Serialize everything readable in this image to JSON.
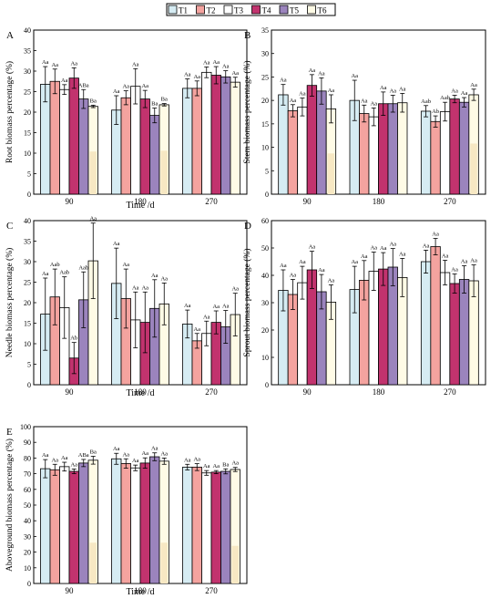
{
  "legend": [
    "T1",
    "T2",
    "T3",
    "T4",
    "T5",
    "T6"
  ],
  "colors": {
    "T1": "#d6ecf3",
    "T2": "#f4a39f",
    "T3": "#ffffff",
    "T4": "#c2336e",
    "T5": "#9b84bd",
    "T6": "#fffbe6",
    "inner_bar": "#f7e8c3",
    "axis": "#000000"
  },
  "chart_data": [
    {
      "panel": "A",
      "type": "bar",
      "xlabel": "Time /d",
      "ylabel": "Root biomass percentage (%)",
      "categories": [
        "90",
        "180",
        "270"
      ],
      "ylim": [
        0,
        40
      ],
      "yticks": [
        0,
        5,
        10,
        15,
        20,
        25,
        30,
        35,
        40
      ],
      "series": [
        {
          "name": "T1",
          "values": [
            26.8,
            20.5,
            25.8
          ],
          "errors": [
            4.3,
            3.5,
            2.3
          ],
          "labels": [
            "Aa",
            "Aa",
            "Aa"
          ]
        },
        {
          "name": "T2",
          "values": [
            27.5,
            23.5,
            25.8
          ],
          "errors": [
            3.0,
            1.7,
            1.8
          ],
          "labels": [
            "Aa",
            "Aa",
            "Aa"
          ]
        },
        {
          "name": "T3",
          "values": [
            25.5,
            26.3,
            29.7
          ],
          "errors": [
            1.2,
            4.3,
            1.3
          ],
          "labels": [
            "Aa",
            "Aa",
            "Aa"
          ]
        },
        {
          "name": "T4",
          "values": [
            28.3,
            23.2,
            29.0
          ],
          "errors": [
            2.5,
            2.1,
            2.1
          ],
          "labels": [
            "Aa",
            "Aa",
            "Aa"
          ]
        },
        {
          "name": "T5",
          "values": [
            23.2,
            19.2,
            28.6
          ],
          "errors": [
            2.3,
            1.8,
            1.5
          ],
          "labels": [
            "ABa",
            "Ba",
            "Aa"
          ]
        },
        {
          "name": "T6",
          "values": [
            21.4,
            21.8,
            27.3
          ],
          "errors": [
            0.3,
            0.3,
            1.2
          ],
          "labels": [
            "Ba",
            "Ba",
            "Aa"
          ]
        }
      ],
      "inner_values": [
        10.4,
        10.6,
        null
      ]
    },
    {
      "panel": "B",
      "type": "bar",
      "xlabel": "",
      "ylabel": "Stem biomass percentage (%)",
      "categories": [
        "90",
        "180",
        "270"
      ],
      "ylim": [
        0,
        35
      ],
      "yticks": [
        0,
        5,
        10,
        15,
        20,
        25,
        30,
        35
      ],
      "series": [
        {
          "name": "T1",
          "values": [
            21.2,
            20.0,
            17.7
          ],
          "errors": [
            2.2,
            4.3,
            1.2
          ],
          "labels": [
            "Aa",
            "Aa",
            "Aab"
          ]
        },
        {
          "name": "T2",
          "values": [
            17.8,
            17.2,
            15.5
          ],
          "errors": [
            1.3,
            1.8,
            1.2
          ],
          "labels": [
            "Aa",
            "Aa",
            "Ab"
          ]
        },
        {
          "name": "T3",
          "values": [
            18.6,
            16.5,
            17.6
          ],
          "errors": [
            1.9,
            1.9,
            2.0
          ],
          "labels": [
            "Aa",
            "Aa",
            "Aab"
          ]
        },
        {
          "name": "T4",
          "values": [
            23.2,
            19.3,
            20.3
          ],
          "errors": [
            2.3,
            2.5,
            0.8
          ],
          "labels": [
            "Aa",
            "Aa",
            "Aa"
          ]
        },
        {
          "name": "T5",
          "values": [
            22.0,
            19.3,
            19.6
          ],
          "errors": [
            2.8,
            1.8,
            1.0
          ],
          "labels": [
            "Aa",
            "Aa",
            "Aa"
          ]
        },
        {
          "name": "T6",
          "values": [
            18.2,
            19.5,
            21.2
          ],
          "errors": [
            3.0,
            2.0,
            1.2
          ],
          "labels": [
            "Aa",
            "Aa",
            "Aa"
          ]
        }
      ],
      "inner_values": [
        8.7,
        null,
        10.8
      ]
    },
    {
      "panel": "C",
      "type": "bar",
      "xlabel": "Time /d",
      "ylabel": "Needle biomass percentage (%)",
      "categories": [
        "90",
        "180",
        "270"
      ],
      "ylim": [
        0,
        40
      ],
      "yticks": [
        0,
        5,
        10,
        15,
        20,
        25,
        30,
        35,
        40
      ],
      "series": [
        {
          "name": "T1",
          "values": [
            17.2,
            24.7,
            14.8
          ],
          "errors": [
            8.8,
            8.6,
            3.4
          ],
          "labels": [
            "Aa",
            "Aa",
            "Aa"
          ]
        },
        {
          "name": "T2",
          "values": [
            21.4,
            21.0,
            10.7
          ],
          "errors": [
            6.8,
            7.2,
            1.8
          ],
          "labels": [
            "Aab",
            "Aa",
            "Aa"
          ]
        },
        {
          "name": "T3",
          "values": [
            18.8,
            15.8,
            12.5
          ],
          "errors": [
            7.5,
            6.8,
            3.0
          ],
          "labels": [
            "Aab",
            "Aa",
            "Aa"
          ]
        },
        {
          "name": "T4",
          "values": [
            6.5,
            15.2,
            15.2
          ],
          "errors": [
            3.8,
            7.4,
            2.8
          ],
          "labels": [
            "Ab",
            "Aa",
            "Aa"
          ]
        },
        {
          "name": "T5",
          "values": [
            20.7,
            18.6,
            14.1
          ],
          "errors": [
            6.8,
            7.0,
            4.0
          ],
          "labels": [
            "Aab",
            "Aa",
            "Aa"
          ]
        },
        {
          "name": "T6",
          "values": [
            30.2,
            19.7,
            17.1
          ],
          "errors": [
            9.2,
            5.1,
            5.2
          ],
          "labels": [
            "Aa",
            "Aa",
            "Aa"
          ]
        }
      ],
      "inner_values": [
        null,
        null,
        null
      ]
    },
    {
      "panel": "D",
      "type": "bar",
      "xlabel": "",
      "ylabel": "Sprout biomass percentage (%)",
      "categories": [
        "90",
        "180",
        "270"
      ],
      "ylim": [
        0,
        60
      ],
      "yticks": [
        0,
        10,
        20,
        30,
        40,
        50,
        60
      ],
      "series": [
        {
          "name": "T1",
          "values": [
            34.5,
            34.8,
            45.0
          ],
          "errors": [
            7.5,
            8.5,
            4.2
          ],
          "labels": [
            "Aa",
            "Aa",
            "Aa"
          ]
        },
        {
          "name": "T2",
          "values": [
            33.0,
            38.2,
            50.5
          ],
          "errors": [
            5.5,
            7.2,
            3.0
          ],
          "labels": [
            "Aa",
            "Aa",
            "Aa"
          ]
        },
        {
          "name": "T3",
          "values": [
            37.3,
            41.5,
            41.0
          ],
          "errors": [
            6.0,
            7.0,
            4.5
          ],
          "labels": [
            "Aa",
            "Aa",
            "Aa"
          ]
        },
        {
          "name": "T4",
          "values": [
            42.0,
            42.3,
            37.0
          ],
          "errors": [
            6.8,
            6.0,
            3.5
          ],
          "labels": [
            "Aa",
            "Aa",
            "Aa"
          ]
        },
        {
          "name": "T5",
          "values": [
            34.0,
            43.0,
            38.5
          ],
          "errors": [
            6.3,
            6.8,
            5.0
          ],
          "labels": [
            "Aa",
            "Aa",
            "Aa"
          ]
        },
        {
          "name": "T6",
          "values": [
            30.2,
            39.2,
            38.0
          ],
          "errors": [
            6.3,
            7.0,
            5.8
          ],
          "labels": [
            "Aa",
            "Aa",
            "Aa"
          ]
        }
      ],
      "inner_values": [
        null,
        null,
        null
      ]
    },
    {
      "panel": "E",
      "type": "bar",
      "xlabel": "Time /d",
      "ylabel": "Aboveground biomass percentage (%)",
      "categories": [
        "90",
        "180",
        "270"
      ],
      "ylim": [
        0,
        100
      ],
      "yticks": [
        0,
        10,
        20,
        30,
        40,
        50,
        60,
        70,
        80,
        90,
        100
      ],
      "series": [
        {
          "name": "T1",
          "values": [
            73.2,
            79.5,
            74.2
          ],
          "errors": [
            5.8,
            3.5,
            1.8
          ],
          "labels": [
            "Aa",
            "Aa",
            "Aa"
          ]
        },
        {
          "name": "T2",
          "values": [
            72.5,
            76.5,
            74.2
          ],
          "errors": [
            3.5,
            3.0,
            2.2
          ],
          "labels": [
            "Aa",
            "Aa",
            "Aa"
          ]
        },
        {
          "name": "T3",
          "values": [
            74.5,
            73.7,
            70.5
          ],
          "errors": [
            2.8,
            1.8,
            1.5
          ],
          "labels": [
            "Aa",
            "Aa",
            "Aa"
          ]
        },
        {
          "name": "T4",
          "values": [
            71.5,
            76.8,
            71.0
          ],
          "errors": [
            1.5,
            3.3,
            1.0
          ],
          "labels": [
            "Aa",
            "Aa",
            "Aa"
          ]
        },
        {
          "name": "T5",
          "values": [
            76.8,
            80.8,
            71.5
          ],
          "errors": [
            2.3,
            2.5,
            1.6
          ],
          "labels": [
            "ABa",
            "Aa",
            "Ba"
          ]
        },
        {
          "name": "T6",
          "values": [
            78.6,
            78.0,
            72.7
          ],
          "errors": [
            2.5,
            2.0,
            1.3
          ],
          "labels": [
            "Ba",
            "Aa",
            "Aa"
          ]
        }
      ],
      "inner_values": [
        26.0,
        26.0,
        24.0
      ]
    }
  ]
}
